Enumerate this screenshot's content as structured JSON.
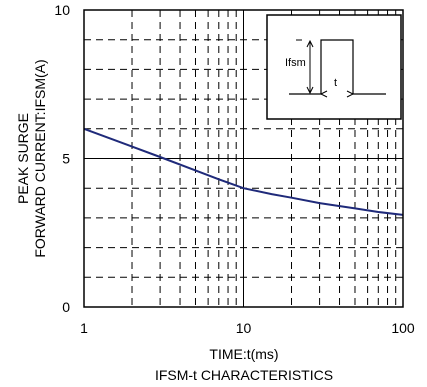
{
  "chart_data": {
    "type": "line",
    "xscale": "log",
    "xlim": [
      1,
      100
    ],
    "ylim": [
      0,
      10
    ],
    "xticks": [
      1,
      10,
      100
    ],
    "xtick_labels": [
      "1",
      "10",
      "100"
    ],
    "yticks": [
      0,
      5,
      10
    ],
    "ytick_labels": [
      "0",
      "5",
      "10"
    ],
    "xlabel": "TIME:t(ms)",
    "ylabel_line1": "PEAK SURGE",
    "ylabel_line2": "FORWARD CURRENT:IFSM(A)",
    "caption": "IFSM-t CHARACTERISTICS",
    "grid": true,
    "series": [
      {
        "color": "#1f2a7a",
        "x": [
          1,
          1.5,
          2,
          3,
          5,
          7,
          10,
          15,
          20,
          30,
          50,
          70,
          100
        ],
        "y": [
          6.0,
          5.65,
          5.4,
          5.05,
          4.6,
          4.3,
          4.0,
          3.8,
          3.68,
          3.5,
          3.32,
          3.2,
          3.1
        ]
      }
    ],
    "inset": {
      "label_ifsm": "Ifsm",
      "label_t": "t"
    }
  }
}
